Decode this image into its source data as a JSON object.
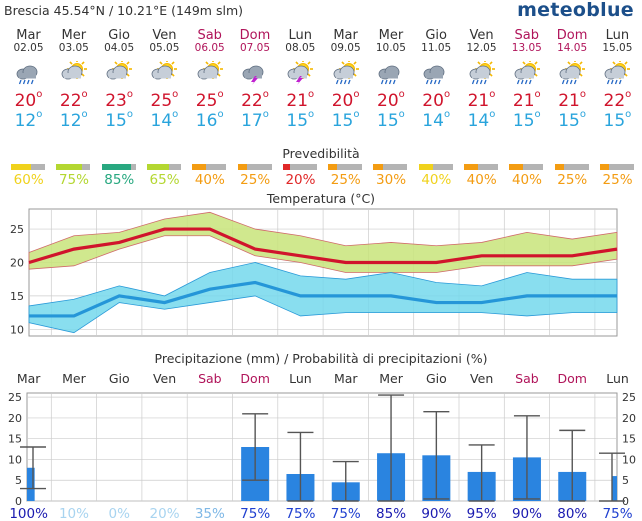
{
  "header": {
    "location": "Brescia  45.54°N / 10.21°E (149m slm)",
    "logo": "meteoblue"
  },
  "days": [
    {
      "name": "Mar",
      "date": "02.05",
      "weekend": false,
      "icon": "rain-cloud-icon",
      "tmax": 20,
      "tmin": 12,
      "pred": 60,
      "pred_color": "#f0d21c"
    },
    {
      "name": "Mer",
      "date": "03.05",
      "weekend": false,
      "icon": "sun-cloud-icon",
      "tmax": 22,
      "tmin": 12,
      "pred": 75,
      "pred_color": "#b4d731"
    },
    {
      "name": "Gio",
      "date": "04.05",
      "weekend": false,
      "icon": "sun-cloud-icon",
      "tmax": 23,
      "tmin": 15,
      "pred": 85,
      "pred_color": "#28a880"
    },
    {
      "name": "Ven",
      "date": "05.05",
      "weekend": false,
      "icon": "sun-cloud-icon",
      "tmax": 25,
      "tmin": 14,
      "pred": 65,
      "pred_color": "#b4d731"
    },
    {
      "name": "Sab",
      "date": "06.05",
      "weekend": true,
      "icon": "sun-cloud-icon",
      "tmax": 25,
      "tmin": 16,
      "pred": 40,
      "pred_color": "#f39c12"
    },
    {
      "name": "Dom",
      "date": "07.05",
      "weekend": true,
      "icon": "thunderstorm-icon",
      "tmax": 22,
      "tmin": 17,
      "pred": 25,
      "pred_color": "#f39c12"
    },
    {
      "name": "Lun",
      "date": "08.05",
      "weekend": false,
      "icon": "thunderstorm-sun-icon",
      "tmax": 21,
      "tmin": 15,
      "pred": 20,
      "pred_color": "#e02828"
    },
    {
      "name": "Mar",
      "date": "09.05",
      "weekend": false,
      "icon": "sun-rain-icon",
      "tmax": 20,
      "tmin": 15,
      "pred": 25,
      "pred_color": "#f39c12"
    },
    {
      "name": "Mer",
      "date": "10.05",
      "weekend": false,
      "icon": "rain-cloud-icon",
      "tmax": 20,
      "tmin": 15,
      "pred": 30,
      "pred_color": "#f39c12"
    },
    {
      "name": "Gio",
      "date": "11.05",
      "weekend": false,
      "icon": "rain-cloud-icon",
      "tmax": 20,
      "tmin": 14,
      "pred": 40,
      "pred_color": "#f0d21c"
    },
    {
      "name": "Ven",
      "date": "12.05",
      "weekend": false,
      "icon": "sun-rain-icon",
      "tmax": 21,
      "tmin": 14,
      "pred": 40,
      "pred_color": "#f39c12"
    },
    {
      "name": "Sab",
      "date": "13.05",
      "weekend": true,
      "icon": "sun-rain-icon",
      "tmax": 21,
      "tmin": 15,
      "pred": 40,
      "pred_color": "#f39c12"
    },
    {
      "name": "Dom",
      "date": "14.05",
      "weekend": true,
      "icon": "sun-rain-icon",
      "tmax": 21,
      "tmin": 15,
      "pred": 25,
      "pred_color": "#f39c12"
    },
    {
      "name": "Lun",
      "date": "15.05",
      "weekend": false,
      "icon": "sun-rain-icon",
      "tmax": 22,
      "tmin": 15,
      "pred": 25,
      "pred_color": "#f39c12"
    }
  ],
  "pred_title": "Prevedibilità",
  "pred_unit": "%",
  "temp_title": "Temperatura (°C)",
  "precip_title": "Precipitazione (mm) / Probabilità di precipitazioni (%)",
  "colors": {
    "tmax": "#d0142c",
    "tmin": "#29a4dc",
    "max_band": "#c8e47a",
    "min_band": "#74d8ec",
    "precip_bar": "#2a84e0",
    "weekend": "#b0145a"
  },
  "chart_data": [
    {
      "type": "line",
      "title": "Temperatura (°C)",
      "ylim": [
        9,
        28
      ],
      "yticks": [
        10,
        15,
        20,
        25
      ],
      "grid": true,
      "series": [
        {
          "values": [
            20,
            22,
            23,
            25,
            25,
            22,
            21,
            20,
            20,
            20,
            21,
            21,
            21,
            22
          ]
        },
        {
          "values": [
            12,
            12,
            15,
            14,
            16,
            17,
            15,
            15,
            15,
            14,
            14,
            15,
            15,
            15
          ]
        }
      ],
      "max_band_low": [
        19,
        19.5,
        22,
        24,
        24,
        21,
        20,
        18.5,
        18.5,
        18.5,
        19.5,
        19.5,
        19.5,
        20.5
      ],
      "max_band_high": [
        21.5,
        24,
        24.5,
        26.5,
        27.5,
        25,
        24,
        22.5,
        23,
        22.5,
        23,
        24.5,
        23.5,
        24.5
      ],
      "min_band_low": [
        11,
        9.5,
        14,
        13,
        14,
        15,
        12,
        12.5,
        12.5,
        12.5,
        12.5,
        12,
        12.5,
        12.5
      ],
      "min_band_high": [
        13.5,
        14.5,
        16.5,
        15,
        18.5,
        20,
        18,
        17.5,
        18.5,
        17,
        16.5,
        18.5,
        17.5,
        17.5
      ]
    },
    {
      "type": "bar",
      "title": "Precipitazione (mm) / Probabilità di precipitazioni (%)",
      "categories": [
        "Mar",
        "Mer",
        "Gio",
        "Ven",
        "Sab",
        "Dom",
        "Lun",
        "Mar",
        "Mer",
        "Gio",
        "Ven",
        "Sab",
        "Dom",
        "Lun"
      ],
      "ylim": [
        0,
        26
      ],
      "yticks": [
        0,
        5,
        10,
        15,
        20,
        25
      ],
      "values": [
        8,
        0,
        0,
        0,
        0,
        13,
        6.5,
        4.5,
        11.5,
        11,
        7,
        10.5,
        7,
        6
      ],
      "range_low": [
        3,
        0,
        0,
        0,
        0,
        5,
        0,
        0,
        0,
        0.5,
        0,
        0.5,
        0,
        0
      ],
      "range_high": [
        13,
        0,
        0,
        0,
        0,
        21,
        16.5,
        9.5,
        25.5,
        21.5,
        13.5,
        20.5,
        17,
        11.5
      ],
      "probabilities": [
        100,
        10,
        0,
        20,
        35,
        75,
        75,
        75,
        85,
        90,
        95,
        90,
        80,
        75
      ]
    }
  ]
}
